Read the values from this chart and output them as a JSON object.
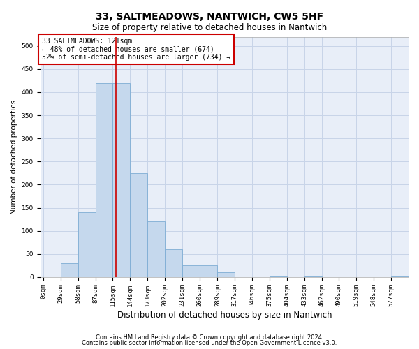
{
  "title1": "33, SALTMEADOWS, NANTWICH, CW5 5HF",
  "title2": "Size of property relative to detached houses in Nantwich",
  "xlabel": "Distribution of detached houses by size in Nantwich",
  "ylabel": "Number of detached properties",
  "footer1": "Contains HM Land Registry data © Crown copyright and database right 2024.",
  "footer2": "Contains public sector information licensed under the Open Government Licence v3.0.",
  "annotation_line1": "33 SALTMEADOWS: 121sqm",
  "annotation_line2": "← 48% of detached houses are smaller (674)",
  "annotation_line3": "52% of semi-detached houses are larger (734) →",
  "bar_edges": [
    0,
    29,
    58,
    87,
    115,
    144,
    173,
    202,
    231,
    260,
    289,
    317,
    346,
    375,
    404,
    433,
    462,
    490,
    519,
    548,
    577
  ],
  "bar_heights": [
    0,
    30,
    140,
    420,
    420,
    225,
    120,
    60,
    25,
    25,
    10,
    0,
    0,
    2,
    0,
    2,
    0,
    0,
    0,
    0,
    2
  ],
  "bar_color": "#c5d8ed",
  "bar_edge_color": "#7eadd4",
  "vline_color": "#cc0000",
  "vline_x": 121,
  "annotation_box_color": "#cc0000",
  "annotation_box_fill": "white",
  "ylim": [
    0,
    520
  ],
  "xlim": [
    -5,
    606
  ],
  "yticks": [
    0,
    50,
    100,
    150,
    200,
    250,
    300,
    350,
    400,
    450,
    500
  ],
  "xtick_labels": [
    "0sqm",
    "29sqm",
    "58sqm",
    "87sqm",
    "115sqm",
    "144sqm",
    "173sqm",
    "202sqm",
    "231sqm",
    "260sqm",
    "289sqm",
    "317sqm",
    "346sqm",
    "375sqm",
    "404sqm",
    "433sqm",
    "462sqm",
    "490sqm",
    "519sqm",
    "548sqm",
    "577sqm"
  ],
  "xtick_positions": [
    0,
    29,
    58,
    87,
    115,
    144,
    173,
    202,
    231,
    260,
    289,
    317,
    346,
    375,
    404,
    433,
    462,
    490,
    519,
    548,
    577
  ],
  "grid_color": "#c8d4e8",
  "bg_color": "#e8eef8",
  "title1_fontsize": 10,
  "title2_fontsize": 8.5,
  "ylabel_fontsize": 7.5,
  "xlabel_fontsize": 8.5,
  "tick_fontsize": 6.5,
  "ann_fontsize": 7,
  "footer_fontsize": 6
}
